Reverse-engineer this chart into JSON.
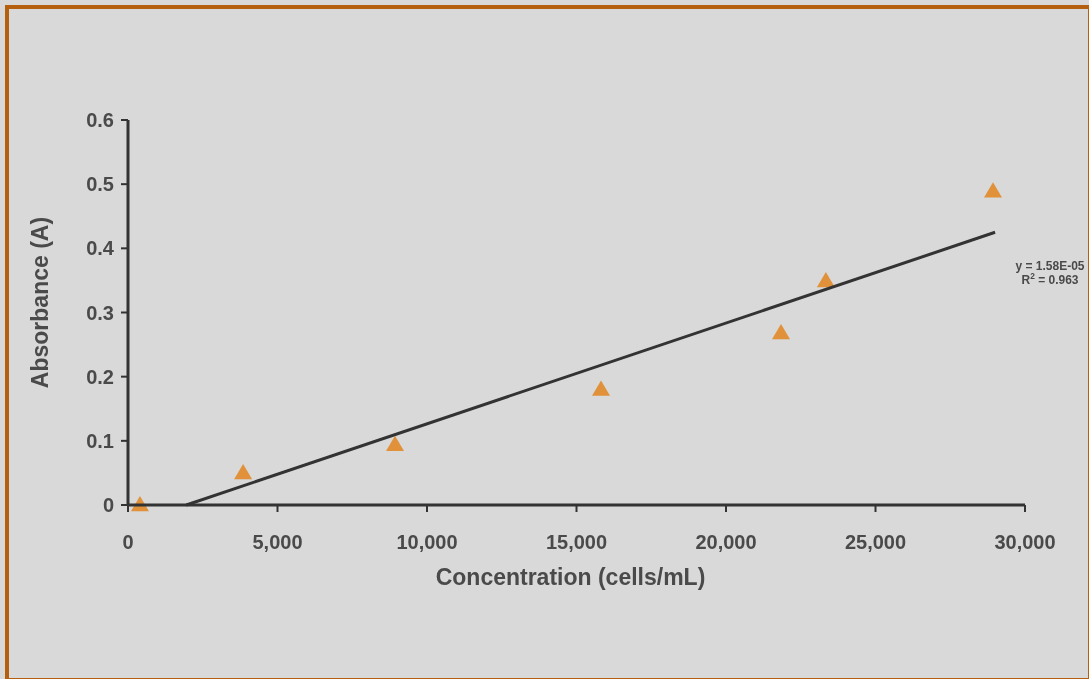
{
  "chart_data": {
    "type": "scatter",
    "xlabel": "Concentration (cells/mL)",
    "ylabel": "Absorbance (A)",
    "xlim": [
      0,
      30000
    ],
    "xticks": [
      {
        "value": 0,
        "label": "0"
      },
      {
        "value": 5000,
        "label": "5,000"
      },
      {
        "value": 10000,
        "label": "10,000"
      },
      {
        "value": 15000,
        "label": "15,000"
      },
      {
        "value": 20000,
        "label": "20,000"
      },
      {
        "value": 25000,
        "label": "25,000"
      },
      {
        "value": 30000,
        "label": "30,000"
      }
    ],
    "ylim": [
      0,
      0.6
    ],
    "yticks": [
      0,
      0.1,
      0.2,
      0.3,
      0.4,
      0.5,
      0.6
    ],
    "grid": false,
    "marker": "triangle",
    "series": [
      {
        "color": "#e0913a",
        "x": [
          400,
          3850,
          8930,
          15820,
          21840,
          23340,
          28930
        ],
        "values": [
          0,
          0.05,
          0.094,
          0.18,
          0.268,
          0.349,
          0.489
        ]
      },
      {
        "type": "line",
        "color": "#333333",
        "marker": "none",
        "x": [
          1950,
          29000
        ],
        "values": [
          0,
          0.425
        ]
      }
    ],
    "annotations": [
      "y = 1.58E-05",
      "R$^{2}$ = 0.963"
    ]
  }
}
